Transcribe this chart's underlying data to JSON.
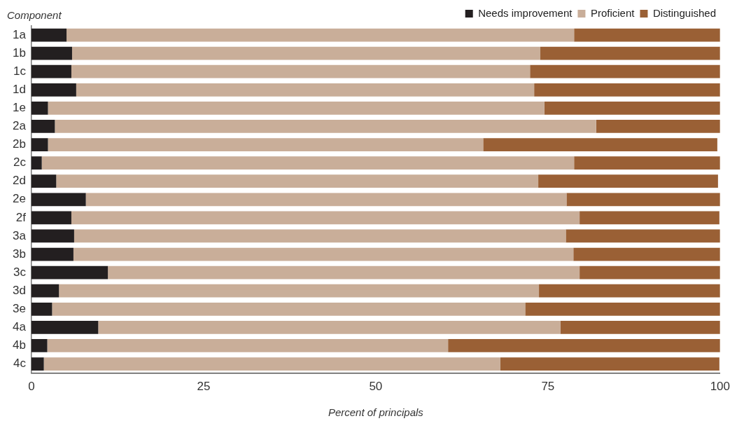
{
  "chart_data": {
    "type": "bar",
    "orientation": "horizontal",
    "stacked": true,
    "xlabel": "Percent of principals",
    "ylabel": "Component",
    "categories": [
      "1a",
      "1b",
      "1c",
      "1d",
      "1e",
      "2a",
      "2b",
      "2c",
      "2d",
      "2e",
      "2f",
      "3a",
      "3b",
      "3c",
      "3d",
      "3e",
      "4a",
      "4b",
      "4c"
    ],
    "series": [
      {
        "name": "Needs improvement",
        "color": "#231f20",
        "values": [
          5.1,
          5.9,
          5.8,
          6.5,
          2.4,
          3.4,
          2.4,
          1.5,
          3.6,
          7.9,
          5.8,
          6.2,
          6.1,
          11.1,
          4.0,
          3.0,
          9.7,
          2.3,
          1.8
        ]
      },
      {
        "name": "Proficient",
        "color": "#c9ae99",
        "values": [
          73.7,
          68.0,
          66.6,
          66.5,
          72.1,
          78.6,
          63.2,
          77.3,
          70.0,
          69.8,
          73.8,
          71.4,
          72.6,
          68.5,
          69.7,
          68.7,
          67.1,
          58.2,
          66.3
        ]
      },
      {
        "name": "Distinguished",
        "color": "#9a6035",
        "values": [
          21.2,
          26.1,
          27.6,
          27.0,
          25.5,
          18.0,
          34.0,
          21.2,
          26.1,
          22.3,
          20.3,
          22.4,
          21.3,
          20.4,
          26.3,
          28.3,
          23.2,
          39.5,
          31.8
        ]
      }
    ],
    "xlim": [
      0,
      100
    ],
    "xticks": [
      0,
      25,
      50,
      75,
      100
    ],
    "grid": false,
    "legend": "top right"
  }
}
